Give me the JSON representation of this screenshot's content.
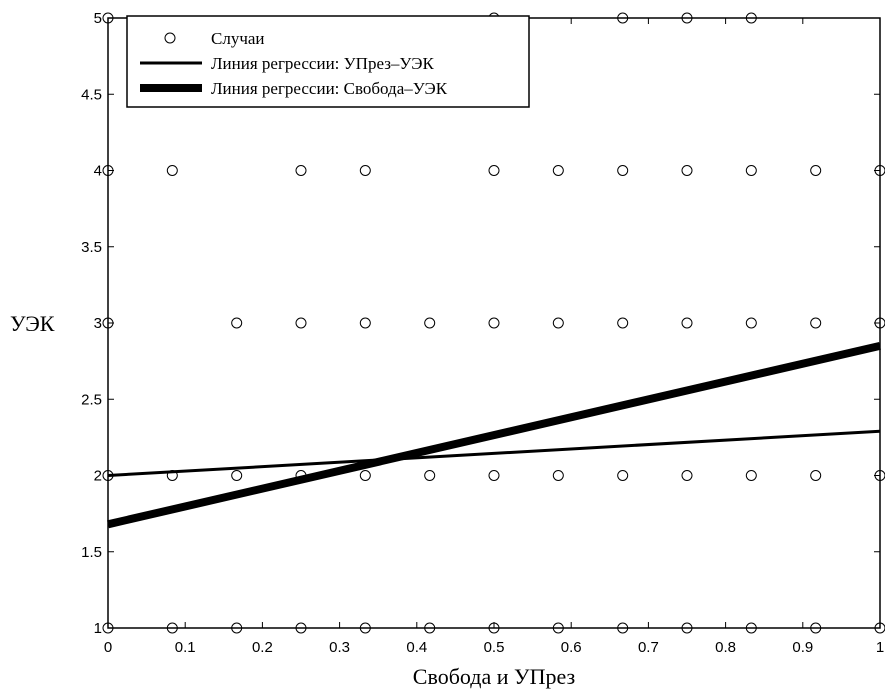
{
  "chart_data": {
    "type": "scatter",
    "title": "",
    "xlabel": "Свобода и УПрез",
    "ylabel": "УЭК",
    "xlim": [
      0,
      1
    ],
    "ylim": [
      1,
      5
    ],
    "x_ticks": [
      0,
      0.1,
      0.2,
      0.3,
      0.4,
      0.5,
      0.6,
      0.7,
      0.8,
      0.9,
      1
    ],
    "x_tick_labels": [
      "0",
      "0.1",
      "0.2",
      "0.3",
      "0.4",
      "0.5",
      "0.6",
      "0.7",
      "0.8",
      "0.9",
      "1"
    ],
    "y_ticks": [
      1,
      1.5,
      2,
      2.5,
      3,
      3.5,
      4,
      4.5,
      5
    ],
    "y_tick_labels": [
      "1",
      "1.5",
      "2",
      "2.5",
      "3",
      "3.5",
      "4",
      "4.5",
      "5"
    ],
    "grid": false,
    "legend_position": "top-left",
    "series": [
      {
        "name": "Случаи",
        "kind": "points",
        "marker": "open-circle",
        "x": [
          0,
          0.5,
          0.6667,
          0.75,
          0.8333,
          0,
          0.0833,
          0.25,
          0.3333,
          0.5,
          0.5833,
          0.6667,
          0.75,
          0.8333,
          0.9167,
          1,
          0,
          0.1667,
          0.25,
          0.3333,
          0.4167,
          0.5,
          0.5833,
          0.6667,
          0.75,
          0.8333,
          0.9167,
          1,
          0,
          0.0833,
          0.1667,
          0.25,
          0.3333,
          0.4167,
          0.5,
          0.5833,
          0.6667,
          0.75,
          0.8333,
          0.9167,
          1,
          0,
          0.0833,
          0.1667,
          0.25,
          0.3333,
          0.4167,
          0.5,
          0.5833,
          0.6667,
          0.75,
          0.8333,
          0.9167,
          1
        ],
        "y": [
          5,
          5,
          5,
          5,
          5,
          4,
          4,
          4,
          4,
          4,
          4,
          4,
          4,
          4,
          4,
          4,
          3,
          3,
          3,
          3,
          3,
          3,
          3,
          3,
          3,
          3,
          3,
          3,
          2,
          2,
          2,
          2,
          2,
          2,
          2,
          2,
          2,
          2,
          2,
          2,
          2,
          1,
          1,
          1,
          1,
          1,
          1,
          1,
          1,
          1,
          1,
          1,
          1,
          1
        ]
      },
      {
        "name": "Линия регрессии: УПрез–УЭК",
        "kind": "line",
        "weight": "thin",
        "x": [
          0,
          1
        ],
        "y": [
          2.0,
          2.29
        ]
      },
      {
        "name": "Линия регрессии: Свобода–УЭК",
        "kind": "line",
        "weight": "thick",
        "x": [
          0,
          1
        ],
        "y": [
          1.68,
          2.85
        ]
      }
    ]
  }
}
